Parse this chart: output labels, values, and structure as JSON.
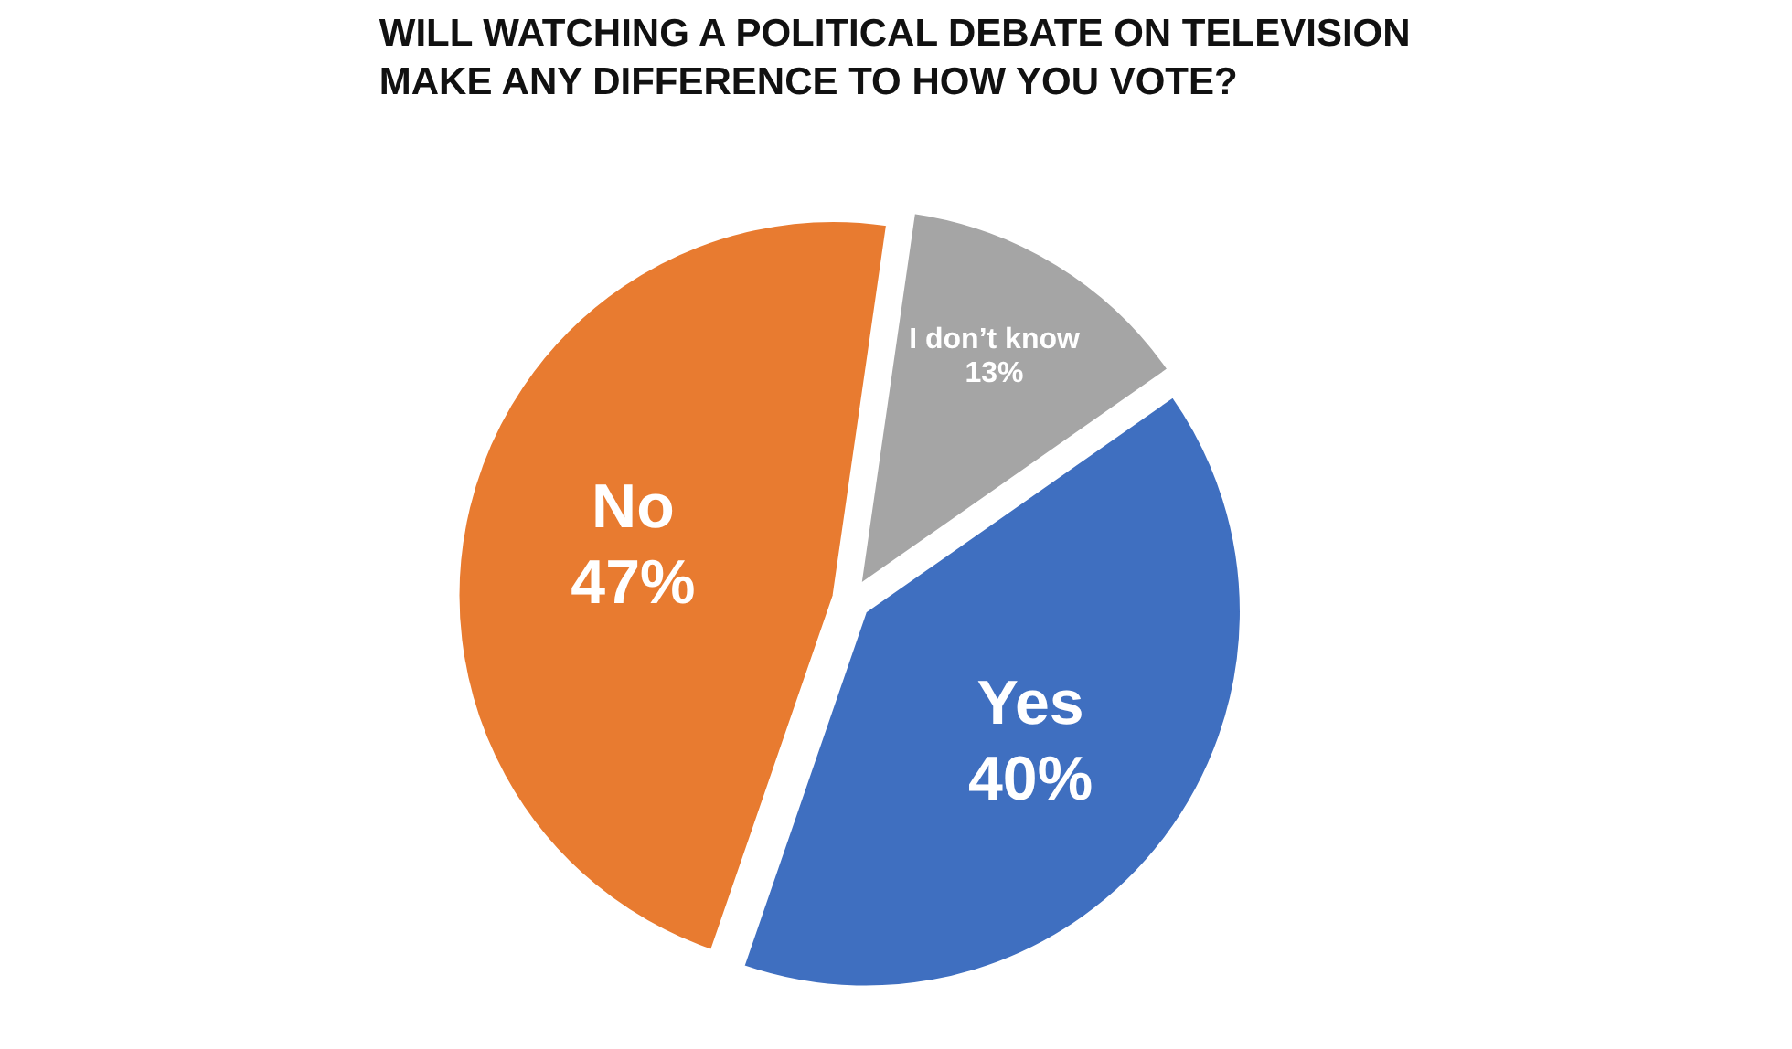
{
  "chart_data": {
    "type": "pie",
    "title": "WILL WATCHING A POLITICAL DEBATE ON TELEVISION\nMAKE ANY DIFFERENCE TO HOW YOU VOTE?",
    "categories": [
      "Yes",
      "No",
      "I don’t know"
    ],
    "values": [
      40,
      47,
      13
    ],
    "colors": [
      "#3f6fc0",
      "#e87b30",
      "#a5a5a5"
    ],
    "value_labels": [
      "40%",
      "47%",
      "13%"
    ]
  }
}
